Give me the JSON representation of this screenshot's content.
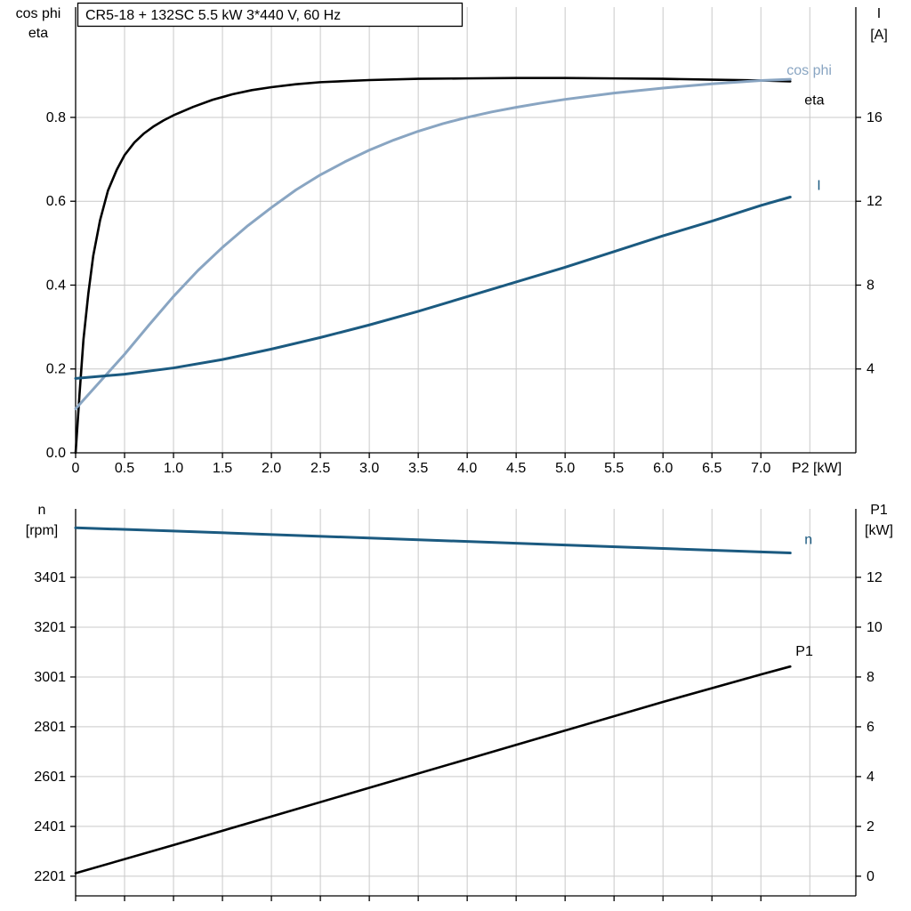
{
  "style": {
    "grid": "#c9c9c9",
    "axis": "#000000",
    "background": "#ffffff",
    "eta_color": "#000000",
    "cosphi_color": "#89a5c2",
    "current_color": "#1b5a80",
    "speed_color": "#1b5a80",
    "p1_color": "#000000"
  },
  "chart_data": [
    {
      "id": "motor-electrical-curves",
      "type": "line",
      "title": "CR5-18 + 132SC   5.5 kW   3*440 V, 60 Hz",
      "xlabel": "P2 [kW]",
      "ylabel_left": [
        "cos phi",
        "eta"
      ],
      "ylabel_right": [
        "I",
        "[A]"
      ],
      "xlim": [
        0,
        7.97
      ],
      "ylim_left": [
        0,
        1.063
      ],
      "ylim_right": [
        0,
        21.26
      ],
      "grid_x": [
        0.5,
        1,
        1.5,
        2,
        2.5,
        3,
        3.5,
        4,
        4.5,
        5,
        5.5,
        6,
        6.5,
        7,
        7.5
      ],
      "grid_left": [
        0.2,
        0.4,
        0.6,
        0.8
      ],
      "x_ticks": [
        {
          "v": 0,
          "label": "0"
        },
        {
          "v": 0.5,
          "label": "0.5"
        },
        {
          "v": 1,
          "label": "1.0"
        },
        {
          "v": 1.5,
          "label": "1.5"
        },
        {
          "v": 2,
          "label": "2.0"
        },
        {
          "v": 2.5,
          "label": "2.5"
        },
        {
          "v": 3,
          "label": "3.0"
        },
        {
          "v": 3.5,
          "label": "3.5"
        },
        {
          "v": 4,
          "label": "4.0"
        },
        {
          "v": 4.5,
          "label": "4.5"
        },
        {
          "v": 5,
          "label": "5.0"
        },
        {
          "v": 5.5,
          "label": "5.5"
        },
        {
          "v": 6,
          "label": "6.0"
        },
        {
          "v": 6.5,
          "label": "6.5"
        },
        {
          "v": 7,
          "label": "7.0"
        }
      ],
      "left_ticks": [
        {
          "v": 0,
          "label": "0.0"
        },
        {
          "v": 0.2,
          "label": "0.2"
        },
        {
          "v": 0.4,
          "label": "0.4"
        },
        {
          "v": 0.6,
          "label": "0.6"
        },
        {
          "v": 0.8,
          "label": "0.8"
        }
      ],
      "right_ticks": [
        {
          "v": 4,
          "label": "4"
        },
        {
          "v": 8,
          "label": "8"
        },
        {
          "v": 12,
          "label": "12"
        },
        {
          "v": 16,
          "label": "16"
        }
      ],
      "series": [
        {
          "key": "eta",
          "name": "eta",
          "axis": "left",
          "color": "#000000",
          "width": 2.6,
          "label_dx": 16,
          "label_dy": 26,
          "x": [
            0,
            0.04,
            0.08,
            0.13,
            0.18,
            0.25,
            0.33,
            0.42,
            0.5,
            0.6,
            0.7,
            0.8,
            0.9,
            1.0,
            1.2,
            1.4,
            1.6,
            1.8,
            2.0,
            2.25,
            2.5,
            3.0,
            3.5,
            4.0,
            4.5,
            5.0,
            5.5,
            6.0,
            6.5,
            7.0,
            7.3
          ],
          "y": [
            0,
            0.14,
            0.27,
            0.38,
            0.47,
            0.555,
            0.625,
            0.675,
            0.71,
            0.74,
            0.762,
            0.779,
            0.793,
            0.805,
            0.825,
            0.842,
            0.855,
            0.865,
            0.872,
            0.879,
            0.884,
            0.889,
            0.892,
            0.893,
            0.894,
            0.894,
            0.893,
            0.892,
            0.89,
            0.888,
            0.886
          ]
        },
        {
          "key": "cos-phi",
          "name": "cos phi",
          "axis": "left",
          "color": "#89a5c2",
          "width": 3,
          "label_dx": -4,
          "label_dy": -5,
          "x": [
            0,
            0.25,
            0.5,
            0.75,
            1.0,
            1.25,
            1.5,
            1.75,
            2.0,
            2.25,
            2.5,
            2.75,
            3.0,
            3.25,
            3.5,
            3.75,
            4.0,
            4.25,
            4.5,
            4.75,
            5.0,
            5.5,
            6.0,
            6.5,
            7.0,
            7.3
          ],
          "y": [
            0.105,
            0.17,
            0.235,
            0.305,
            0.373,
            0.435,
            0.49,
            0.54,
            0.585,
            0.627,
            0.663,
            0.694,
            0.722,
            0.746,
            0.767,
            0.785,
            0.8,
            0.813,
            0.824,
            0.834,
            0.843,
            0.858,
            0.87,
            0.88,
            0.888,
            0.891
          ]
        },
        {
          "key": "current",
          "name": "I",
          "axis": "right",
          "color": "#1b5a80",
          "width": 3,
          "label_dx": 30,
          "label_dy": -8,
          "x": [
            0,
            0.5,
            1,
            1.5,
            2,
            2.5,
            3,
            3.5,
            4,
            4.5,
            5,
            5.5,
            6,
            6.5,
            7,
            7.3
          ],
          "y": [
            3.55,
            3.75,
            4.05,
            4.45,
            4.95,
            5.5,
            6.1,
            6.75,
            7.45,
            8.15,
            8.85,
            9.6,
            10.35,
            11.05,
            11.8,
            12.2
          ]
        }
      ]
    },
    {
      "id": "motor-speed-power-curves",
      "type": "line",
      "title": "",
      "xlabel": "",
      "ylabel_left": [
        "n",
        "[rpm]"
      ],
      "ylabel_right": [
        "P1",
        "[kW]"
      ],
      "xlim": [
        0,
        7.97
      ],
      "ylim_left": [
        2122,
        3676
      ],
      "ylim_right": [
        -0.79,
        14.75
      ],
      "grid_x": [
        0.5,
        1,
        1.5,
        2,
        2.5,
        3,
        3.5,
        4,
        4.5,
        5,
        5.5,
        6,
        6.5,
        7,
        7.5
      ],
      "grid_left": [
        2201,
        2401,
        2601,
        2801,
        3001,
        3201,
        3401
      ],
      "x_ticks": [
        {
          "v": 0,
          "label": ""
        },
        {
          "v": 0.5,
          "label": ""
        },
        {
          "v": 1,
          "label": ""
        },
        {
          "v": 1.5,
          "label": ""
        },
        {
          "v": 2,
          "label": ""
        },
        {
          "v": 2.5,
          "label": ""
        },
        {
          "v": 3,
          "label": ""
        },
        {
          "v": 3.5,
          "label": ""
        },
        {
          "v": 4,
          "label": ""
        },
        {
          "v": 4.5,
          "label": ""
        },
        {
          "v": 5,
          "label": ""
        },
        {
          "v": 5.5,
          "label": ""
        },
        {
          "v": 6,
          "label": ""
        },
        {
          "v": 6.5,
          "label": ""
        },
        {
          "v": 7,
          "label": ""
        }
      ],
      "left_ticks": [
        {
          "v": 2201,
          "label": "2201"
        },
        {
          "v": 2401,
          "label": "2401"
        },
        {
          "v": 2601,
          "label": "2601"
        },
        {
          "v": 2801,
          "label": "2801"
        },
        {
          "v": 3001,
          "label": "3001"
        },
        {
          "v": 3201,
          "label": "3201"
        },
        {
          "v": 3401,
          "label": "3401"
        }
      ],
      "right_ticks": [
        {
          "v": 0,
          "label": "0"
        },
        {
          "v": 2,
          "label": "2"
        },
        {
          "v": 4,
          "label": "4"
        },
        {
          "v": 6,
          "label": "6"
        },
        {
          "v": 8,
          "label": "8"
        },
        {
          "v": 10,
          "label": "10"
        },
        {
          "v": 12,
          "label": "12"
        }
      ],
      "series": [
        {
          "key": "speed",
          "name": "n",
          "axis": "left",
          "color": "#1b5a80",
          "width": 3,
          "label_dx": 16,
          "label_dy": -10,
          "x": [
            0,
            1,
            2,
            3,
            4,
            5,
            6,
            7,
            7.3
          ],
          "y": [
            3600,
            3587,
            3573,
            3559,
            3545,
            3531,
            3517,
            3503,
            3499
          ]
        },
        {
          "key": "p1",
          "name": "P1",
          "axis": "right",
          "color": "#000000",
          "width": 2.6,
          "label_dx": 6,
          "label_dy": -12,
          "x": [
            0,
            1,
            2,
            3,
            4,
            5,
            6,
            7,
            7.3
          ],
          "y": [
            0.12,
            1.25,
            2.4,
            3.55,
            4.7,
            5.85,
            7.0,
            8.1,
            8.42
          ]
        }
      ]
    }
  ]
}
